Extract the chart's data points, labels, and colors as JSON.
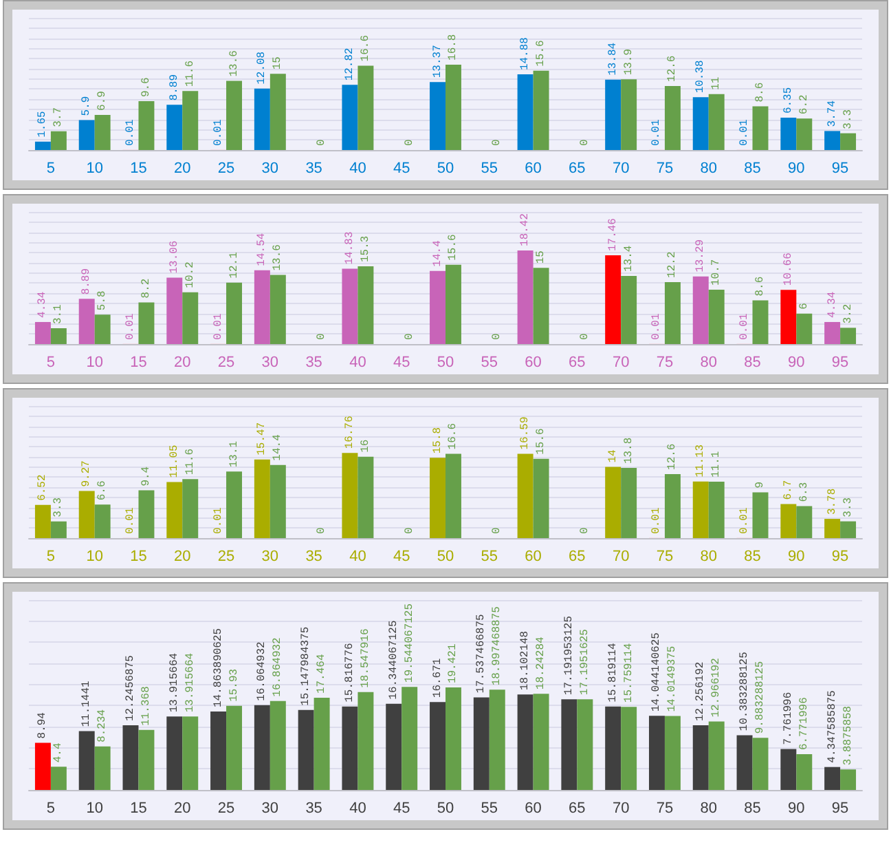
{
  "chart_data": [
    {
      "type": "bar",
      "categories": [
        "5",
        "10",
        "15",
        "20",
        "25",
        "30",
        "35",
        "40",
        "45",
        "50",
        "55",
        "60",
        "65",
        "70",
        "75",
        "80",
        "85",
        "90",
        "95"
      ],
      "series": [
        {
          "color": "#0080d0",
          "colors": [
            "#0080d0",
            "#0080d0",
            "#ff0000",
            "#0080d0",
            "#ff0000",
            "#0080d0",
            "#0080d0",
            "#0080d0",
            "#0080d0",
            "#0080d0",
            "#0080d0",
            "#0080d0",
            "#0080d0",
            "#0080d0",
            "#ff0000",
            "#0080d0",
            "#ff0000",
            "#0080d0",
            "#0080d0"
          ],
          "values": [
            1.65,
            5.9,
            0.01,
            8.89,
            0.01,
            12.08,
            0,
            12.82,
            0,
            13.37,
            0,
            14.88,
            0,
            13.84,
            0.01,
            10.38,
            0.01,
            6.35,
            3.74
          ],
          "value_labels": [
            "1.65",
            "5.9",
            "0.01",
            "8.89",
            "0.01",
            "12.08",
            null,
            "12.82",
            null,
            "13.37",
            null,
            "14.88",
            null,
            "13.84",
            "0.01",
            "10.38",
            "0.01",
            "6.35",
            "3.74"
          ]
        },
        {
          "color": "#66a04a",
          "values": [
            3.7,
            6.9,
            9.6,
            11.6,
            13.6,
            15,
            0,
            16.6,
            0,
            16.8,
            0,
            15.6,
            0,
            13.9,
            12.6,
            11,
            8.6,
            6.2,
            3.3
          ],
          "value_labels": [
            "3.7",
            "6.9",
            "9.6",
            "11.6",
            "13.6",
            "15",
            "0",
            "16.6",
            "0",
            "16.8",
            "0",
            "15.6",
            "0",
            "13.9",
            "12.6",
            "11",
            "8.6",
            "6.2",
            "3.3"
          ]
        }
      ],
      "ylim": [
        0,
        26
      ],
      "yticks": [
        {
          "value": 0,
          "label": null
        },
        {
          "value": 2,
          "label": null
        },
        {
          "value": 4,
          "label": null
        },
        {
          "value": 6,
          "label": null
        },
        {
          "value": 8,
          "label": null
        },
        {
          "value": 10,
          "label": null
        },
        {
          "value": 12,
          "label": null
        },
        {
          "value": 14,
          "label": null
        },
        {
          "value": 16,
          "label": null
        },
        {
          "value": 18,
          "label": null
        },
        {
          "value": 20,
          "label": null
        },
        {
          "value": 22,
          "label": null
        },
        {
          "value": 24,
          "label": null
        },
        {
          "value": 26,
          "label": null
        }
      ],
      "grid": "y",
      "tick_labels": "x"
    },
    {
      "type": "bar",
      "categories": [
        "5",
        "10",
        "15",
        "20",
        "25",
        "30",
        "35",
        "40",
        "45",
        "50",
        "55",
        "60",
        "65",
        "70",
        "75",
        "80",
        "85",
        "90",
        "95"
      ],
      "series": [
        {
          "color": "#c864b8",
          "colors": [
            "#c864b8",
            "#c864b8",
            "#ff0000",
            "#c864b8",
            "#ff0000",
            "#c864b8",
            "#c864b8",
            "#c864b8",
            "#c864b8",
            "#c864b8",
            "#c864b8",
            "#c864b8",
            "#c864b8",
            "#ff0000",
            "#ff0000",
            "#c864b8",
            "#ff0000",
            "#ff0000",
            "#c864b8"
          ],
          "values": [
            4.34,
            8.89,
            0.01,
            13.06,
            0.01,
            14.54,
            0,
            14.83,
            0,
            14.4,
            0,
            18.42,
            0,
            17.46,
            0.01,
            13.29,
            0.01,
            10.66,
            4.34
          ],
          "value_labels": [
            "4.34",
            "8.89",
            "0.01",
            "13.06",
            "0.01",
            "14.54",
            null,
            "14.83",
            null,
            "14.4",
            null,
            "18.42",
            null,
            "17.46",
            "0.01",
            "13.29",
            "0.01",
            "10.66",
            "4.34"
          ]
        },
        {
          "color": "#66a04a",
          "values": [
            3.1,
            5.8,
            8.2,
            10.2,
            12.1,
            13.6,
            0,
            15.3,
            0,
            15.6,
            0,
            15,
            0,
            13.4,
            12.2,
            10.7,
            8.6,
            6,
            3.2
          ],
          "value_labels": [
            "3.1",
            "5.8",
            "8.2",
            "10.2",
            "12.1",
            "13.6",
            "0",
            "15.3",
            "0",
            "15.6",
            "0",
            "15",
            "0",
            "13.4",
            "12.2",
            "10.7",
            "8.6",
            "6",
            "3.2"
          ]
        }
      ],
      "ylim": [
        0,
        26
      ],
      "yticks": [
        {
          "value": 0,
          "label": null
        },
        {
          "value": 2,
          "label": null
        },
        {
          "value": 4,
          "label": null
        },
        {
          "value": 6,
          "label": null
        },
        {
          "value": 8,
          "label": null
        },
        {
          "value": 10,
          "label": null
        },
        {
          "value": 12,
          "label": null
        },
        {
          "value": 14,
          "label": null
        },
        {
          "value": 16,
          "label": null
        },
        {
          "value": 18,
          "label": null
        },
        {
          "value": 20,
          "label": null
        },
        {
          "value": 22,
          "label": null
        },
        {
          "value": 24,
          "label": null
        },
        {
          "value": 26,
          "label": null
        }
      ],
      "grid": "y",
      "tick_labels": "x"
    },
    {
      "type": "bar",
      "categories": [
        "5",
        "10",
        "15",
        "20",
        "25",
        "30",
        "35",
        "40",
        "45",
        "50",
        "55",
        "60",
        "65",
        "70",
        "75",
        "80",
        "85",
        "90",
        "95"
      ],
      "series": [
        {
          "color": "#aaad00",
          "colors": [
            "#aaad00",
            "#aaad00",
            "#ff0000",
            "#aaad00",
            "#ff0000",
            "#aaad00",
            "#aaad00",
            "#aaad00",
            "#aaad00",
            "#aaad00",
            "#aaad00",
            "#aaad00",
            "#aaad00",
            "#aaad00",
            "#ff0000",
            "#aaad00",
            "#ff0000",
            "#aaad00",
            "#aaad00"
          ],
          "values": [
            6.52,
            9.27,
            0.01,
            11.05,
            0.01,
            15.47,
            0,
            16.76,
            0,
            15.8,
            0,
            16.59,
            0,
            14,
            0.01,
            11.13,
            0.01,
            6.7,
            3.78
          ],
          "value_labels": [
            "6.52",
            "9.27",
            "0.01",
            "11.05",
            "0.01",
            "15.47",
            null,
            "16.76",
            null,
            "15.8",
            null,
            "16.59",
            null,
            "14",
            "0.01",
            "11.13",
            "0.01",
            "6.7",
            "3.78"
          ]
        },
        {
          "color": "#66a04a",
          "values": [
            3.3,
            6.6,
            9.4,
            11.6,
            13.1,
            14.4,
            0,
            16,
            0,
            16.6,
            0,
            15.6,
            0,
            13.8,
            12.6,
            11.1,
            9,
            6.3,
            3.3
          ],
          "value_labels": [
            "3.3",
            "6.6",
            "9.4",
            "11.6",
            "13.1",
            "14.4",
            "0",
            "16",
            "0",
            "16.6",
            "0",
            "15.6",
            "0",
            "13.8",
            "12.6",
            "11.1",
            "9",
            "6.3",
            "3.3"
          ]
        }
      ],
      "ylim": [
        0,
        26
      ],
      "yticks": [
        {
          "value": 0,
          "label": null
        },
        {
          "value": 2,
          "label": null
        },
        {
          "value": 4,
          "label": null
        },
        {
          "value": 6,
          "label": null
        },
        {
          "value": 8,
          "label": null
        },
        {
          "value": 10,
          "label": null
        },
        {
          "value": 12,
          "label": null
        },
        {
          "value": 14,
          "label": null
        },
        {
          "value": 16,
          "label": null
        },
        {
          "value": 18,
          "label": null
        },
        {
          "value": 20,
          "label": null
        },
        {
          "value": 22,
          "label": null
        },
        {
          "value": 24,
          "label": null
        },
        {
          "value": 26,
          "label": null
        }
      ],
      "grid": "y",
      "tick_labels": "x"
    },
    {
      "type": "bar",
      "categories": [
        "5",
        "10",
        "15",
        "20",
        "25",
        "30",
        "35",
        "40",
        "45",
        "50",
        "55",
        "60",
        "65",
        "70",
        "75",
        "80",
        "85",
        "90",
        "95"
      ],
      "series": [
        {
          "color": "#404040",
          "colors": [
            "#ff0000",
            "#404040",
            "#404040",
            "#404040",
            "#404040",
            "#404040",
            "#404040",
            "#404040",
            "#404040",
            "#404040",
            "#404040",
            "#404040",
            "#404040",
            "#404040",
            "#404040",
            "#404040",
            "#404040",
            "#404040",
            "#404040"
          ],
          "values": [
            8.94,
            11.1441,
            12.2456875,
            13.915664,
            14.863890625,
            16.064932,
            15.147984375,
            15.816776,
            16.344067125,
            16.671,
            17.537466875,
            18.102148,
            17.191953125,
            15.819114,
            14.044140625,
            12.256192,
            10.383288125,
            7.761996,
            4.347585875
          ],
          "value_labels": [
            "8.94",
            "11.1441",
            "12.2456875",
            "13.915664",
            "14.863890625",
            "16.064932",
            "15.147984375",
            "15.816776",
            "16.344067125",
            "16.671",
            "17.537466875",
            "18.102148",
            "17.191953125",
            "15.819114",
            "14.044140625",
            "12.256192",
            "10.383288125",
            "7.761996",
            "4.347585875"
          ]
        },
        {
          "color": "#66a04a",
          "values": [
            4.4,
            8.234,
            11.368,
            13.915664,
            15.93,
            16.864932,
            17.464,
            18.547916,
            19.544067125,
            19.421,
            18.997468875,
            18.24284,
            17.1951625,
            15.759114,
            14.0149375,
            12.966192,
            9.883288125,
            6.771996,
            3.8875858
          ],
          "value_labels": [
            "4.4",
            "8.234",
            "11.368",
            "13.915664",
            "15.93",
            "16.864932",
            "17.464",
            "18.547916",
            "19.544067125",
            "19.421",
            "18.997468875",
            "18.24284",
            "17.1951625",
            "15.759114",
            "14.0149375",
            "12.966192",
            "9.883288125",
            "6.771996",
            "3.8875858"
          ]
        }
      ],
      "ylim": [
        0,
        36
      ],
      "yticks": [
        {
          "value": 0,
          "label": null
        },
        {
          "value": 4,
          "label": null
        },
        {
          "value": 8,
          "label": null
        },
        {
          "value": 12,
          "label": null
        },
        {
          "value": 16,
          "label": null
        },
        {
          "value": 20,
          "label": null
        },
        {
          "value": 24,
          "label": null
        },
        {
          "value": 28,
          "label": null
        },
        {
          "value": 32,
          "label": null
        },
        {
          "value": 36,
          "label": null
        }
      ],
      "grid": "y",
      "tick_labels": "x"
    }
  ]
}
